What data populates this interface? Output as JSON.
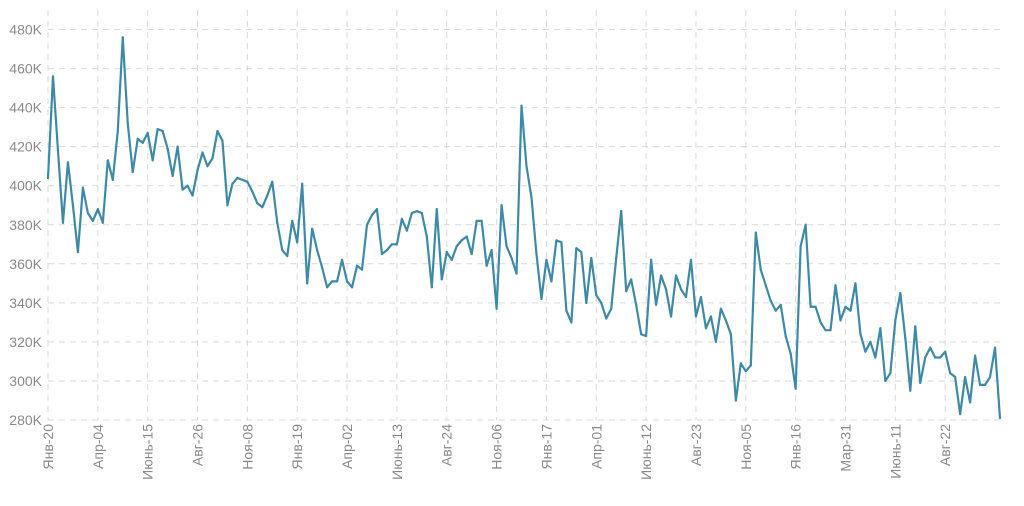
{
  "chart_data": {
    "type": "line",
    "title": "",
    "xlabel": "",
    "ylabel": "",
    "ylim": [
      280000,
      490000
    ],
    "grid": true,
    "y_ticks": [
      "280K",
      "300K",
      "320K",
      "340K",
      "360K",
      "380K",
      "400K",
      "420K",
      "440K",
      "460K",
      "480K"
    ],
    "y_tick_values": [
      280000,
      300000,
      320000,
      340000,
      360000,
      380000,
      400000,
      420000,
      440000,
      460000,
      480000
    ],
    "x_ticks": [
      "Янв-20",
      "Апр-04",
      "Июнь-15",
      "Авг-26",
      "Ноя-08",
      "Янв-19",
      "Апр-02",
      "Июнь-13",
      "Авг-24",
      "Ноя-06",
      "Янв-17",
      "Апр-01",
      "Июнь-12",
      "Авг-23",
      "Ноя-05",
      "Янв-16",
      "Мар-31",
      "Июнь-11",
      "Авг-22"
    ],
    "x_tick_index": [
      0,
      10,
      20,
      30,
      40,
      50,
      60,
      70,
      80,
      90,
      100,
      110,
      120,
      130,
      140,
      150,
      160,
      170,
      180
    ],
    "colors": {
      "line": "#3d8aa8",
      "grid": "#d9d9d9",
      "tick_text": "#8a8a8a"
    },
    "series": [
      {
        "values": [
          404000,
          456000,
          418000,
          381000,
          412000,
          390000,
          366000,
          399000,
          386000,
          382000,
          388000,
          381000,
          413000,
          403000,
          428000,
          476000,
          432000,
          407000,
          424000,
          422000,
          427000,
          413000,
          429000,
          428000,
          419000,
          405000,
          420000,
          398000,
          400000,
          395000,
          408000,
          417000,
          410000,
          414000,
          428000,
          423000,
          390000,
          401000,
          404000,
          403000,
          402000,
          397000,
          391000,
          389000,
          395000,
          402000,
          381000,
          367000,
          364000,
          382000,
          371000,
          401000,
          350000,
          378000,
          367000,
          358000,
          348000,
          351000,
          351000,
          362000,
          351000,
          348000,
          359000,
          357000,
          380000,
          385000,
          388000,
          365000,
          367000,
          370000,
          370000,
          383000,
          377000,
          386000,
          387000,
          386000,
          374000,
          348000,
          388000,
          352000,
          366000,
          362000,
          369000,
          372000,
          374000,
          365000,
          382000,
          382000,
          359000,
          367000,
          337000,
          390000,
          369000,
          363000,
          355000,
          441000,
          410000,
          394000,
          365000,
          342000,
          362000,
          351000,
          372000,
          371000,
          336000,
          330000,
          368000,
          366000,
          340000,
          363000,
          344000,
          340000,
          332000,
          337000,
          363000,
          387000,
          346000,
          352000,
          339000,
          324000,
          323000,
          362000,
          339000,
          354000,
          347000,
          333000,
          354000,
          347000,
          343000,
          362000,
          333000,
          343000,
          327000,
          333000,
          320000,
          337000,
          331000,
          324000,
          290000,
          309000,
          305000,
          308000,
          376000,
          357000,
          349000,
          341000,
          336000,
          339000,
          323000,
          314000,
          296000,
          369000,
          380000,
          338000,
          338000,
          330000,
          326000,
          326000,
          349000,
          331000,
          338000,
          336000,
          350000,
          324000,
          315000,
          320000,
          312000,
          327000,
          300000,
          304000,
          331000,
          345000,
          322000,
          295000,
          328000,
          299000,
          312000,
          317000,
          312000,
          312000,
          315000,
          304000,
          302000,
          283000,
          302000,
          289000,
          313000,
          298000,
          298000,
          302000,
          317000,
          281000
        ]
      }
    ]
  }
}
